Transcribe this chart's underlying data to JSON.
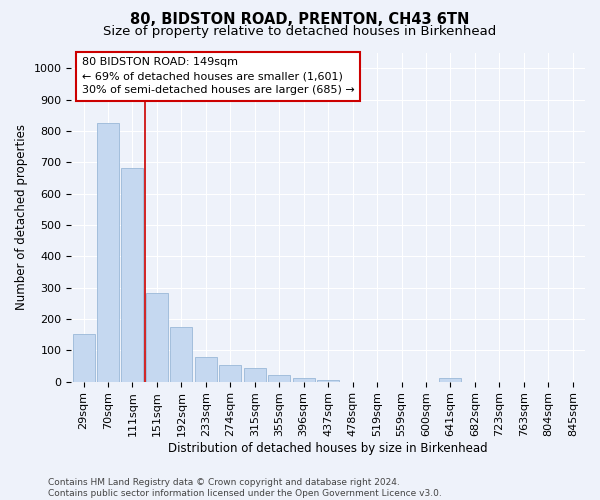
{
  "title": "80, BIDSTON ROAD, PRENTON, CH43 6TN",
  "subtitle": "Size of property relative to detached houses in Birkenhead",
  "xlabel": "Distribution of detached houses by size in Birkenhead",
  "ylabel": "Number of detached properties",
  "footer_line1": "Contains HM Land Registry data © Crown copyright and database right 2024.",
  "footer_line2": "Contains public sector information licensed under the Open Government Licence v3.0.",
  "bar_labels": [
    "29sqm",
    "70sqm",
    "111sqm",
    "151sqm",
    "192sqm",
    "233sqm",
    "274sqm",
    "315sqm",
    "355sqm",
    "396sqm",
    "437sqm",
    "478sqm",
    "519sqm",
    "559sqm",
    "600sqm",
    "641sqm",
    "682sqm",
    "723sqm",
    "763sqm",
    "804sqm",
    "845sqm"
  ],
  "bar_values": [
    152,
    825,
    683,
    283,
    173,
    78,
    53,
    42,
    22,
    12,
    5,
    0,
    0,
    0,
    0,
    10,
    0,
    0,
    0,
    0,
    0
  ],
  "bar_color": "#c5d8f0",
  "bar_edge_color": "#9ab8d8",
  "ylim": [
    0,
    1050
  ],
  "yticks": [
    0,
    100,
    200,
    300,
    400,
    500,
    600,
    700,
    800,
    900,
    1000
  ],
  "vline_x": 2.5,
  "vline_color": "#cc0000",
  "annotation_text": "80 BIDSTON ROAD: 149sqm\n← 69% of detached houses are smaller (1,601)\n30% of semi-detached houses are larger (685) →",
  "annotation_box_facecolor": "#ffffff",
  "annotation_box_edgecolor": "#cc0000",
  "bg_color": "#eef2fa",
  "plot_bg_color": "#eef2fa",
  "grid_color": "#ffffff",
  "title_fontsize": 10.5,
  "subtitle_fontsize": 9.5,
  "axis_label_fontsize": 8.5,
  "tick_fontsize": 8,
  "annotation_fontsize": 8,
  "footer_fontsize": 6.5,
  "footer_color": "#444444"
}
